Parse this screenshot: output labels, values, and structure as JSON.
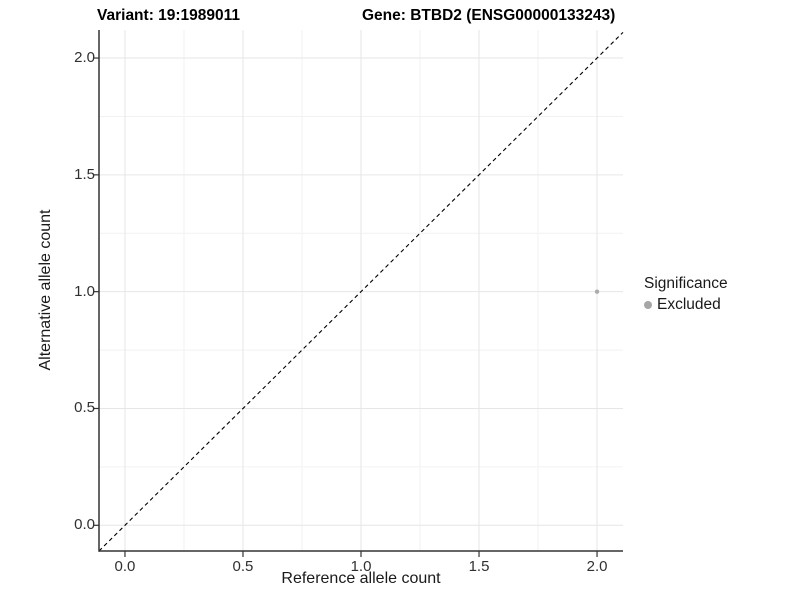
{
  "chart_data": {
    "type": "scatter",
    "titles": {
      "left": "Variant: 19:1989011",
      "right": "Gene: BTBD2 (ENSG00000133243)"
    },
    "xlabel": "Reference allele count",
    "ylabel": "Alternative allele count",
    "xlim": [
      -0.11,
      2.11
    ],
    "ylim": [
      -0.11,
      2.12
    ],
    "x_ticks": [
      "0.0",
      "0.5",
      "1.0",
      "1.5",
      "2.0"
    ],
    "y_ticks": [
      "0.0",
      "0.5",
      "1.0",
      "1.5",
      "2.0"
    ],
    "grid": {
      "show_minor": true,
      "major_color": "#e6e6e6",
      "minor_color": "#f2f2f2"
    },
    "axis": {
      "line_color": "#333333",
      "tick_color": "#333333"
    },
    "identity_line": {
      "equation": "y = x",
      "style": "dashed",
      "color": "#000000"
    },
    "series": [
      {
        "name": "Excluded",
        "color": "#acacac",
        "point_radius": 2.2,
        "points": [
          {
            "x": 2.0,
            "y": 1.0
          }
        ]
      }
    ],
    "legend": {
      "title": "Significance",
      "position": "right",
      "items": [
        {
          "label": "Excluded",
          "color": "#a6a6a6"
        }
      ]
    }
  }
}
